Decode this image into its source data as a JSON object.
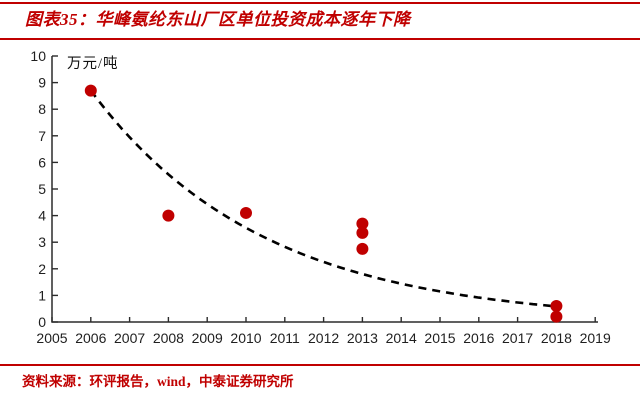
{
  "header": {
    "title": "图表35：华峰氨纶东山厂区单位投资成本逐年下降"
  },
  "footer": {
    "source": "资料来源：环评报告，wind，中泰证券研究所"
  },
  "colors": {
    "accent": "#c00000",
    "dot": "#c00000",
    "trend_line": "#000000",
    "axis": "#2b2b2b",
    "tick_text": "#1f1f1f",
    "background": "#ffffff"
  },
  "chart_data": {
    "type": "scatter",
    "title": "图表35：华峰氨纶东山厂区单位投资成本逐年下降",
    "unit_label": "万元/吨",
    "xlabel": "",
    "ylabel": "万元/吨",
    "x_range": [
      2005,
      2019
    ],
    "y_range": [
      0,
      10
    ],
    "x_ticks": [
      2005,
      2006,
      2007,
      2008,
      2009,
      2010,
      2011,
      2012,
      2013,
      2014,
      2015,
      2016,
      2017,
      2018,
      2019
    ],
    "y_ticks": [
      0,
      1,
      2,
      3,
      4,
      5,
      6,
      7,
      8,
      9,
      10
    ],
    "grid": false,
    "legend": null,
    "points": [
      {
        "year": 2006,
        "value": 8.7
      },
      {
        "year": 2008,
        "value": 4.0
      },
      {
        "year": 2010,
        "value": 4.1
      },
      {
        "year": 2013,
        "value": 3.7
      },
      {
        "year": 2013,
        "value": 3.35
      },
      {
        "year": 2013,
        "value": 2.75
      },
      {
        "year": 2018,
        "value": 0.6
      },
      {
        "year": 2018,
        "value": 0.2
      }
    ],
    "trend": {
      "style": "dashed",
      "shape": "exponential-decay",
      "start_year": 2006,
      "start_value": 8.7,
      "end_year": 2018,
      "end_value": 0.59,
      "decay": 0.2248
    }
  }
}
